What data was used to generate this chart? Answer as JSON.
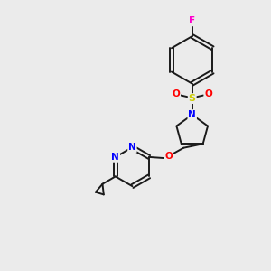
{
  "background_color": "#ebebeb",
  "bond_color": "#1a1a1a",
  "atom_colors": {
    "N": "#0000ff",
    "O": "#ff0000",
    "S": "#cccc00",
    "F": "#ff00cc",
    "C": "#1a1a1a"
  },
  "figsize": [
    3.0,
    3.0
  ],
  "dpi": 100
}
